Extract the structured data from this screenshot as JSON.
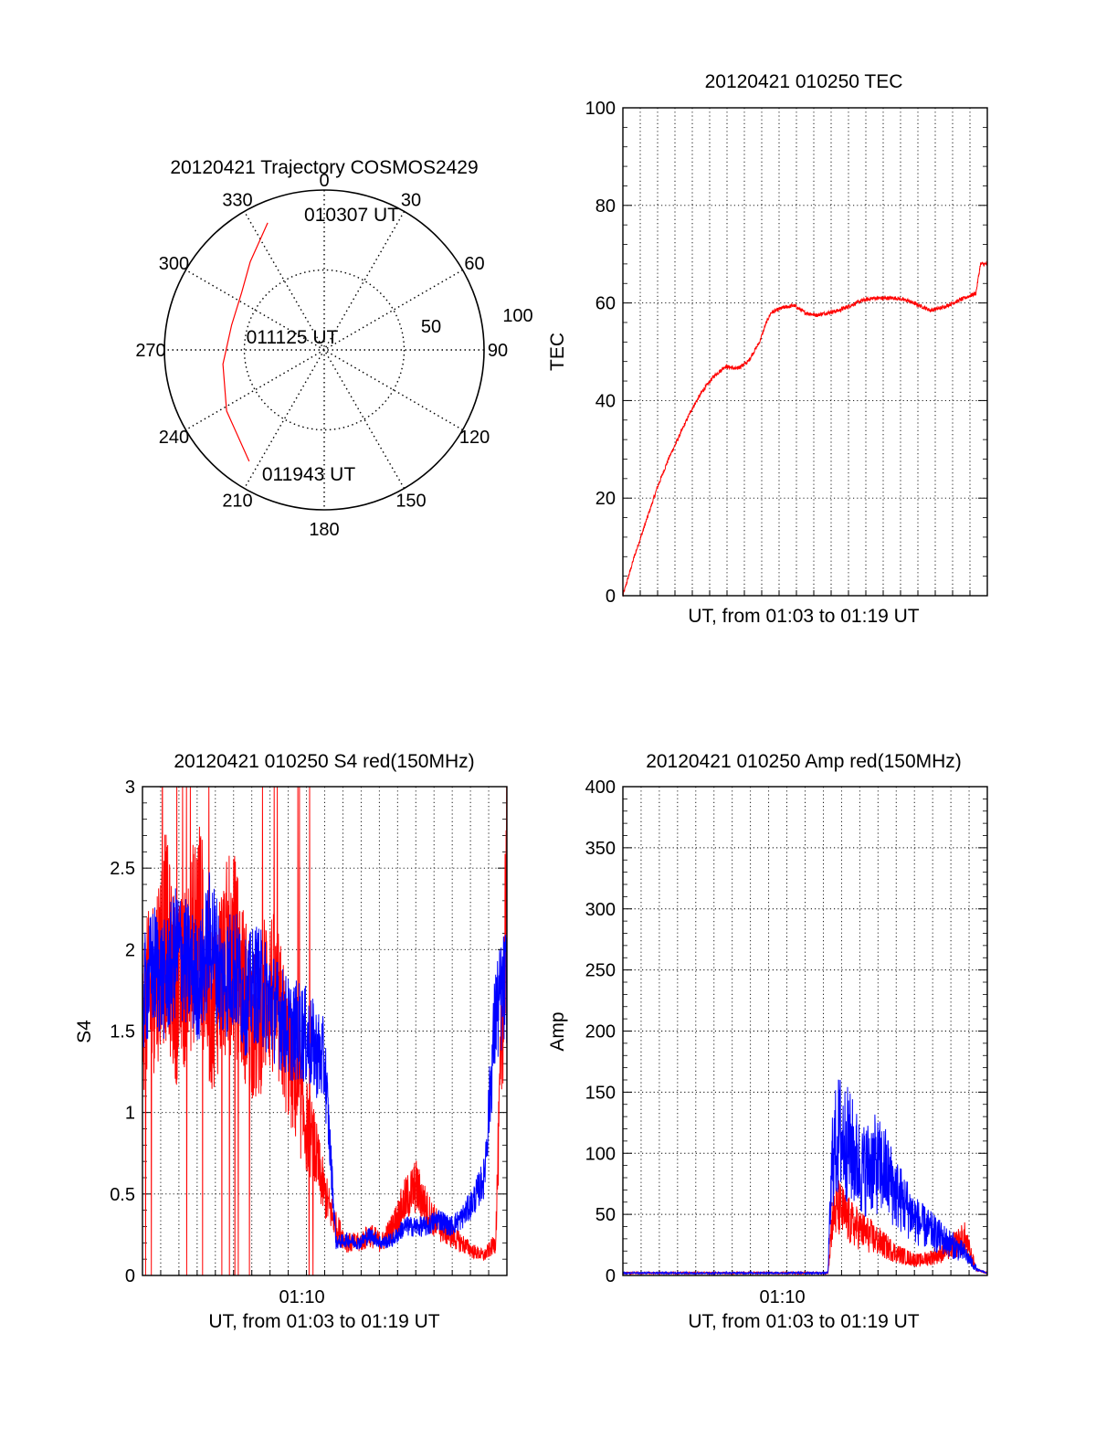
{
  "chart_data": [
    {
      "type": "polar",
      "title": "20120421 Trajectory COSMOS2429",
      "angle_ticks": [
        "0",
        "30",
        "60",
        "90",
        "120",
        "150",
        "180",
        "210",
        "240",
        "270",
        "300",
        "330"
      ],
      "radial_ticks": [
        "50",
        "100"
      ],
      "radial_max": 100,
      "labels": [
        "010307 UT",
        "011125 UT",
        "011943 UT"
      ],
      "series": [
        {
          "color": "#ff0000",
          "points": [
            [
              336,
              87
            ],
            [
              320,
              72
            ],
            [
              305,
              63
            ],
            [
              285,
              60
            ],
            [
              262,
              64
            ],
            [
              238,
              72
            ],
            [
              214,
              84
            ]
          ]
        }
      ],
      "grid": "dotted"
    },
    {
      "type": "line",
      "title": "20120421 010250 TEC",
      "xlabel": "UT, from 01:03 to 01:19 UT",
      "ylabel": "TEC",
      "xlim": [
        0,
        16.0
      ],
      "ylim": [
        0,
        100
      ],
      "yticks": [
        "0",
        "20",
        "40",
        "60",
        "80",
        "100"
      ],
      "grid": true,
      "series": [
        {
          "color": "#ff0000",
          "x": [
            0,
            0.5,
            1.0,
            1.5,
            2.0,
            2.5,
            3.0,
            3.5,
            4.0,
            4.5,
            5.0,
            5.5,
            6.0,
            6.3,
            6.5,
            7.0,
            7.5,
            8.0,
            8.5,
            9.0,
            9.5,
            10.0,
            10.5,
            11.0,
            11.5,
            12.0,
            12.5,
            13.0,
            13.5,
            14.0,
            14.5,
            15.0,
            15.5,
            15.7,
            16.0
          ],
          "y": [
            0,
            8,
            15,
            22,
            28,
            33,
            38,
            42,
            45,
            47,
            46.5,
            48,
            52,
            56,
            58,
            59,
            59.5,
            58,
            57.5,
            58,
            58.5,
            59.5,
            60.5,
            61,
            61,
            61,
            60.5,
            59.5,
            58.5,
            59,
            60,
            61,
            62,
            68,
            68
          ]
        }
      ]
    },
    {
      "type": "line",
      "title": "20120421 010250 S4 red(150MHz)",
      "xlabel": "UT, from 01:03 to 01:19 UT",
      "ylabel": "S4",
      "xlim": [
        0,
        16.0
      ],
      "ylim": [
        0,
        3
      ],
      "yticks": [
        "0",
        "0.5",
        "1",
        "1.5",
        "2",
        "2.5",
        "3"
      ],
      "xticks": [
        "01:10"
      ],
      "grid": true,
      "series": [
        {
          "color": "#ff0000",
          "x": [
            0,
            0.5,
            1.0,
            1.5,
            2.0,
            2.5,
            3.0,
            3.5,
            4.0,
            4.5,
            5.0,
            5.5,
            6.0,
            6.5,
            7.0,
            7.5,
            8.0,
            8.5,
            9.0,
            9.5,
            10.0,
            10.5,
            11.0,
            11.5,
            12.0,
            12.5,
            13.0,
            13.5,
            14.0,
            14.5,
            15.0,
            15.5,
            16.0
          ],
          "y": [
            1.6,
            1.8,
            2.1,
            1.7,
            1.9,
            2.2,
            1.6,
            1.9,
            2.0,
            1.7,
            1.5,
            1.8,
            1.6,
            1.3,
            1.0,
            0.8,
            0.5,
            0.3,
            0.2,
            0.2,
            0.25,
            0.2,
            0.3,
            0.45,
            0.55,
            0.4,
            0.3,
            0.25,
            0.2,
            0.15,
            0.12,
            0.2,
            2.5
          ]
        },
        {
          "color": "#0000ff",
          "x": [
            0,
            0.5,
            1.0,
            1.5,
            2.0,
            2.5,
            3.0,
            3.5,
            4.0,
            4.5,
            5.0,
            5.5,
            6.0,
            6.5,
            7.0,
            7.5,
            8.0,
            8.5,
            9.0,
            9.5,
            10.0,
            10.5,
            11.0,
            11.5,
            12.0,
            12.5,
            13.0,
            13.5,
            14.0,
            14.5,
            15.0,
            15.5,
            16.0
          ],
          "y": [
            1.7,
            1.9,
            1.8,
            2.0,
            1.9,
            1.8,
            2.1,
            1.8,
            1.9,
            1.7,
            1.8,
            1.7,
            1.6,
            1.5,
            1.5,
            1.4,
            1.3,
            0.2,
            0.22,
            0.2,
            0.25,
            0.2,
            0.22,
            0.3,
            0.3,
            0.3,
            0.35,
            0.3,
            0.35,
            0.45,
            0.6,
            1.6,
            1.8
          ]
        }
      ]
    },
    {
      "type": "line",
      "title": "20120421 010250 Amp red(150MHz)",
      "xlabel": "UT, from 01:03 to 01:19 UT",
      "ylabel": "Amp",
      "xlim": [
        0,
        16.0
      ],
      "ylim": [
        0,
        400
      ],
      "yticks": [
        "0",
        "50",
        "100",
        "150",
        "200",
        "250",
        "300",
        "350",
        "400"
      ],
      "xticks": [
        "01:10"
      ],
      "grid": true,
      "series": [
        {
          "color": "#ff0000",
          "x": [
            0,
            1.0,
            2.0,
            3.0,
            4.0,
            5.0,
            6.0,
            7.0,
            8.0,
            9.0,
            9.2,
            9.5,
            10.0,
            10.5,
            11.0,
            11.5,
            12.0,
            12.5,
            13.0,
            13.5,
            14.0,
            14.5,
            15.0,
            15.5,
            16.0
          ],
          "y": [
            2,
            2,
            2,
            2,
            2,
            2,
            2,
            2,
            2,
            2,
            40,
            45,
            35,
            30,
            25,
            20,
            15,
            12,
            10,
            12,
            15,
            20,
            25,
            5,
            2
          ]
        },
        {
          "color": "#0000ff",
          "x": [
            0,
            1.0,
            2.0,
            3.0,
            4.0,
            5.0,
            6.0,
            7.0,
            8.0,
            9.0,
            9.2,
            9.5,
            10.0,
            10.5,
            11.0,
            11.5,
            12.0,
            12.5,
            13.0,
            13.5,
            14.0,
            14.5,
            15.0,
            15.5,
            16.0
          ],
          "y": [
            2,
            2,
            2,
            2,
            2,
            2,
            2,
            2,
            2,
            2,
            80,
            95,
            85,
            70,
            75,
            70,
            55,
            45,
            35,
            30,
            25,
            20,
            15,
            5,
            2
          ]
        }
      ]
    }
  ]
}
